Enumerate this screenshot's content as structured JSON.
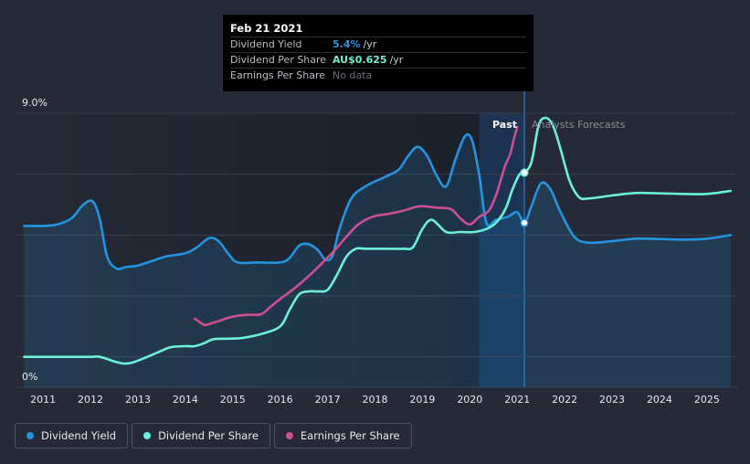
{
  "tooltip": {
    "date": "Feb 21 2021",
    "rows": [
      {
        "label": "Dividend Yield",
        "value": "5.4%",
        "unit": "/yr",
        "color": "#2394df"
      },
      {
        "label": "Dividend Per Share",
        "value": "AU$0.625",
        "unit": "/yr",
        "color": "#6cf1d7"
      },
      {
        "label": "Earnings Per Share",
        "value": "No data",
        "unit": "",
        "color": "#6b6f78"
      }
    ]
  },
  "legend": [
    {
      "label": "Dividend Yield",
      "color": "#2394df"
    },
    {
      "label": "Dividend Per Share",
      "color": "#6cf1d7"
    },
    {
      "label": "Earnings Per Share",
      "color": "#cc4e94"
    }
  ],
  "chart_data": {
    "type": "line",
    "title": "",
    "y_top_label": "9.0%",
    "y_bottom_label": "0%",
    "ylim": [
      0,
      9
    ],
    "xlim": [
      2010.4,
      2025.6
    ],
    "x_ticks": [
      2011,
      2012,
      2013,
      2014,
      2015,
      2016,
      2017,
      2018,
      2019,
      2020,
      2021,
      2022,
      2023,
      2024,
      2025
    ],
    "regions": {
      "past_label": "Past",
      "forecast_label": "Analysts Forecasts",
      "divider_x": 2021.15,
      "highlight_start": 2020.2
    },
    "series": [
      {
        "name": "Dividend Yield",
        "color": "#2394df",
        "x": [
          2010.6,
          2011.0,
          2011.3,
          2011.6,
          2011.85,
          2012.05,
          2012.2,
          2012.35,
          2012.55,
          2012.75,
          2013.0,
          2013.3,
          2013.6,
          2014.0,
          2014.25,
          2014.5,
          2014.7,
          2014.9,
          2015.1,
          2015.5,
          2016.0,
          2016.2,
          2016.4,
          2016.6,
          2016.8,
          2016.95,
          2017.1,
          2017.25,
          2017.5,
          2017.8,
          2018.2,
          2018.5,
          2018.7,
          2018.9,
          2019.1,
          2019.3,
          2019.5,
          2019.7,
          2019.9,
          2020.05,
          2020.2,
          2020.35,
          2020.55,
          2020.8,
          2021.0,
          2021.15,
          2021.3,
          2021.5,
          2021.7,
          2021.9,
          2022.2,
          2022.5,
          2023.0,
          2023.5,
          2024.0,
          2024.5,
          2025.0,
          2025.5
        ],
        "y": [
          5.3,
          5.3,
          5.35,
          5.55,
          6.0,
          6.1,
          5.5,
          4.3,
          3.9,
          3.95,
          4.0,
          4.15,
          4.3,
          4.4,
          4.6,
          4.9,
          4.8,
          4.4,
          4.1,
          4.1,
          4.1,
          4.25,
          4.65,
          4.7,
          4.5,
          4.2,
          4.3,
          5.2,
          6.2,
          6.6,
          6.9,
          7.15,
          7.6,
          7.9,
          7.6,
          6.95,
          6.6,
          7.5,
          8.25,
          8.1,
          6.95,
          5.4,
          5.5,
          5.6,
          5.75,
          5.4,
          5.95,
          6.7,
          6.5,
          5.8,
          4.95,
          4.75,
          4.8,
          4.88,
          4.87,
          4.85,
          4.88,
          5.0
        ]
      },
      {
        "name": "Dividend Per Share",
        "color": "#6cf1d7",
        "x": [
          2010.6,
          2011.0,
          2011.5,
          2012.0,
          2012.2,
          2012.5,
          2012.7,
          2012.9,
          2013.2,
          2013.5,
          2013.7,
          2014.0,
          2014.2,
          2014.4,
          2014.6,
          2015.0,
          2015.2,
          2015.6,
          2016.0,
          2016.2,
          2016.4,
          2016.6,
          2016.8,
          2017.0,
          2017.2,
          2017.4,
          2017.6,
          2017.8,
          2018.2,
          2018.6,
          2018.8,
          2019.0,
          2019.2,
          2019.5,
          2019.8,
          2020.1,
          2020.35,
          2020.55,
          2020.75,
          2020.9,
          2021.05,
          2021.15,
          2021.3,
          2021.45,
          2021.6,
          2021.75,
          2021.9,
          2022.1,
          2022.3,
          2022.5,
          2023.0,
          2023.5,
          2024.0,
          2024.5,
          2025.0,
          2025.5
        ],
        "y": [
          1.0,
          1.0,
          1.0,
          1.0,
          1.0,
          0.85,
          0.78,
          0.82,
          1.0,
          1.2,
          1.32,
          1.35,
          1.35,
          1.45,
          1.58,
          1.6,
          1.62,
          1.75,
          2.0,
          2.55,
          3.05,
          3.15,
          3.15,
          3.2,
          3.7,
          4.3,
          4.55,
          4.55,
          4.55,
          4.55,
          4.6,
          5.2,
          5.5,
          5.1,
          5.1,
          5.1,
          5.2,
          5.4,
          5.85,
          6.5,
          7.0,
          7.05,
          7.4,
          8.6,
          8.85,
          8.6,
          7.9,
          6.8,
          6.25,
          6.2,
          6.3,
          6.38,
          6.37,
          6.35,
          6.35,
          6.45
        ]
      },
      {
        "name": "Earnings Per Share",
        "color": "#cc4e94",
        "x": [
          2014.2,
          2014.4,
          2014.55,
          2014.75,
          2015.0,
          2015.3,
          2015.6,
          2015.8,
          2016.0,
          2016.3,
          2016.6,
          2016.9,
          2017.15,
          2017.4,
          2017.65,
          2017.95,
          2018.3,
          2018.6,
          2018.85,
          2019.0,
          2019.3,
          2019.6,
          2019.8,
          2020.0,
          2020.2,
          2020.4,
          2020.55,
          2020.65,
          2020.75,
          2020.85,
          2020.92,
          2021.0
        ],
        "y": [
          2.25,
          2.05,
          2.1,
          2.2,
          2.32,
          2.38,
          2.4,
          2.65,
          2.9,
          3.25,
          3.65,
          4.1,
          4.5,
          4.95,
          5.35,
          5.6,
          5.7,
          5.8,
          5.92,
          5.95,
          5.9,
          5.85,
          5.55,
          5.35,
          5.6,
          5.8,
          6.3,
          6.8,
          7.3,
          7.65,
          8.1,
          8.55
        ]
      }
    ],
    "markers": [
      {
        "series": "Dividend Per Share",
        "x": 2021.15,
        "y": 7.05
      },
      {
        "series": "Dividend Yield",
        "x": 2021.15,
        "y": 5.4
      }
    ]
  }
}
